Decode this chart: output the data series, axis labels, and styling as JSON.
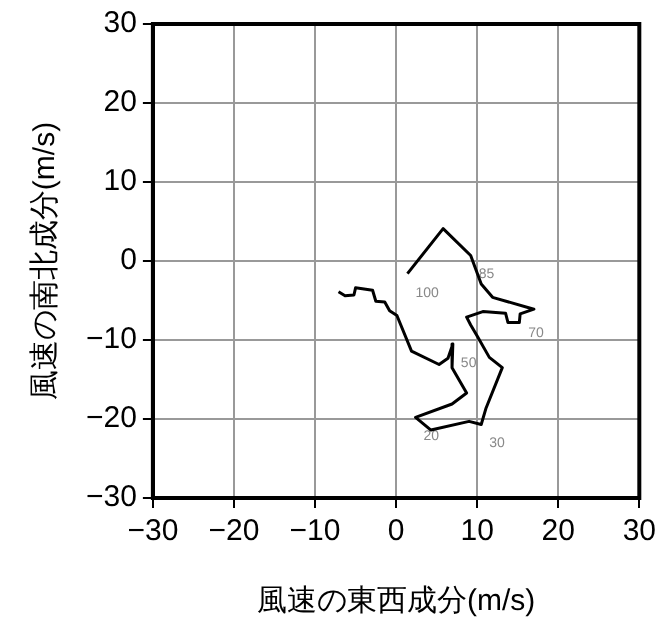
{
  "chart_data": {
    "type": "line",
    "xlabel": "風速の東西成分(m/s)",
    "ylabel": "風速の南北成分(m/s)",
    "xlim": [
      -30,
      30
    ],
    "xticks": [
      -30,
      -20,
      -10,
      0,
      10,
      20,
      30
    ],
    "ylim": [
      -30,
      30
    ],
    "yticks": [
      -30,
      -20,
      -10,
      0,
      10,
      20,
      30
    ],
    "grid": true,
    "marker": "none",
    "line_style": "solid",
    "series": [
      {
        "color": "#000000",
        "x": [
          -7.1,
          -6.3,
          -5.2,
          -5.0,
          -2.9,
          -2.5,
          -1.4,
          -0.8,
          0.1,
          1.9,
          5.3,
          6.4,
          7.0,
          6.9,
          8.7,
          6.9,
          2.4,
          4.3,
          9.0,
          10.5,
          11.1,
          13.1,
          11.5,
          10.0,
          9.2,
          8.7,
          10.7,
          13.5,
          13.8,
          15.2,
          15.3,
          17.0,
          11.9,
          10.5,
          9.2,
          5.8,
          1.4
        ],
        "values": [
          -3.9,
          -4.4,
          -4.3,
          -3.4,
          -3.7,
          -5.1,
          -5.2,
          -6.3,
          -6.9,
          -11.4,
          -13.1,
          -12.3,
          -10.5,
          -13.5,
          -16.7,
          -18.1,
          -19.8,
          -21.4,
          -20.3,
          -20.7,
          -18.6,
          -13.5,
          -12.2,
          -9.5,
          -8.1,
          -7.1,
          -6.4,
          -6.6,
          -7.8,
          -7.8,
          -6.7,
          -6.1,
          -4.6,
          -2.9,
          0.7,
          4.1,
          -1.6
        ]
      }
    ],
    "annotations": [
      {
        "text": "100",
        "x": 1.4,
        "y": -1.6
      },
      {
        "text": "85",
        "x": 9.2,
        "y": 0.7
      },
      {
        "text": "70",
        "x": 15.3,
        "y": -6.7
      },
      {
        "text": "50",
        "x": 7.0,
        "y": -10.5
      },
      {
        "text": "30",
        "x": 10.5,
        "y": -20.7
      },
      {
        "text": "20",
        "x": 2.4,
        "y": -19.8
      }
    ]
  }
}
